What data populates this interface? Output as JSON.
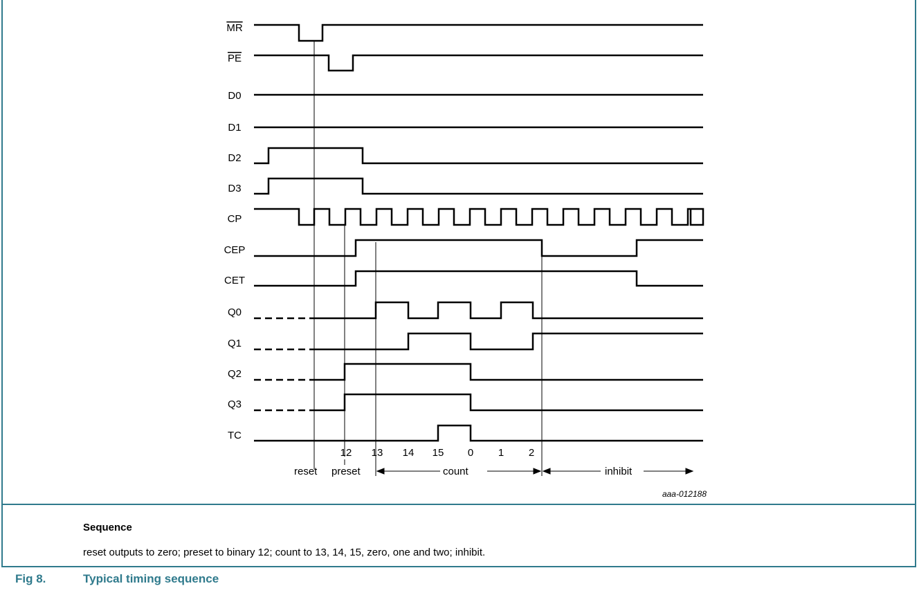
{
  "diagram": {
    "signals": [
      {
        "label": "MR",
        "overline": true
      },
      {
        "label": "PE",
        "overline": true
      },
      {
        "label": "D0",
        "overline": false
      },
      {
        "label": "D1",
        "overline": false
      },
      {
        "label": "D2",
        "overline": false
      },
      {
        "label": "D3",
        "overline": false
      },
      {
        "label": "CP",
        "overline": false
      },
      {
        "label": "CEP",
        "overline": false
      },
      {
        "label": "CET",
        "overline": false
      },
      {
        "label": "Q0",
        "overline": false
      },
      {
        "label": "Q1",
        "overline": false
      },
      {
        "label": "Q2",
        "overline": false
      },
      {
        "label": "Q3",
        "overline": false
      },
      {
        "label": "TC",
        "overline": false
      }
    ],
    "count_values": [
      "12",
      "13",
      "14",
      "15",
      "0",
      "1",
      "2"
    ],
    "phases": {
      "reset": "reset",
      "preset": "preset",
      "count": "count",
      "inhibit": "inhibit"
    },
    "figure_code": "aaa-012188"
  },
  "sequence": {
    "title": "Sequence",
    "text": "reset outputs to zero; preset to binary 12; count to 13, 14, 15, zero, one and two; inhibit."
  },
  "figure": {
    "number": "Fig 8.",
    "title": "Typical timing sequence"
  },
  "colors": {
    "accent": "#2f7a8c",
    "line": "#000000"
  }
}
